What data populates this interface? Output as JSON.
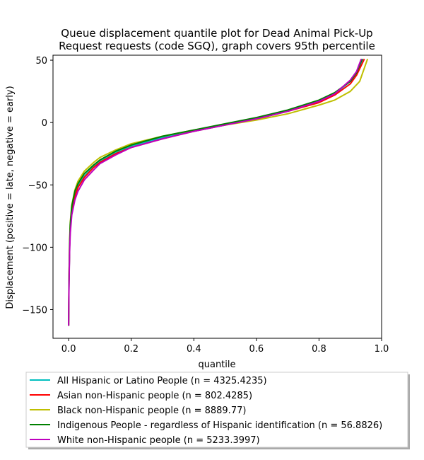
{
  "chart_data": {
    "type": "line",
    "title_line1": "Queue displacement quantile plot for Dead Animal Pick-Up",
    "title_line2": "Request  requests (code SGQ), graph covers 95th percentile",
    "xlabel": "quantile",
    "ylabel": "Displacement (positive = late, negative = early)",
    "xlim": [
      -0.05,
      1.0
    ],
    "ylim": [
      -173,
      54
    ],
    "x_ticks": [
      0.0,
      0.2,
      0.4,
      0.6,
      0.8,
      1.0
    ],
    "x_tick_labels": [
      "0.0",
      "0.2",
      "0.4",
      "0.6",
      "0.8",
      "1.0"
    ],
    "y_ticks": [
      -150,
      -100,
      -50,
      0,
      50
    ],
    "y_tick_labels": [
      "−150",
      "−100",
      "−50",
      "0",
      "50"
    ],
    "grid": false,
    "legend_position": "below",
    "series": [
      {
        "name": "All Hispanic or Latino People (n = 4325.4235)",
        "color": "#00bfbf",
        "x": [
          0.0,
          0.001,
          0.003,
          0.005,
          0.01,
          0.02,
          0.03,
          0.05,
          0.08,
          0.1,
          0.15,
          0.2,
          0.3,
          0.4,
          0.5,
          0.6,
          0.7,
          0.8,
          0.85,
          0.9,
          0.92,
          0.94
        ],
        "y": [
          -163,
          -130,
          -100,
          -85,
          -70,
          -58,
          -51,
          -43,
          -35,
          -31,
          -24,
          -19,
          -12,
          -7,
          -2,
          3,
          9,
          17,
          23,
          33,
          40,
          51
        ]
      },
      {
        "name": "Asian non-Hispanic people (n = 802.4285)",
        "color": "#ff0000",
        "x": [
          0.0,
          0.001,
          0.003,
          0.005,
          0.01,
          0.02,
          0.03,
          0.05,
          0.08,
          0.1,
          0.15,
          0.2,
          0.3,
          0.4,
          0.5,
          0.6,
          0.7,
          0.8,
          0.85,
          0.9,
          0.92,
          0.945
        ],
        "y": [
          -163,
          -128,
          -100,
          -85,
          -71,
          -59,
          -52,
          -44,
          -36,
          -32,
          -25,
          -20,
          -13,
          -7,
          -2,
          3,
          9,
          16,
          22,
          31,
          38,
          51
        ]
      },
      {
        "name": "Black non-Hispanic people (n = 8889.77)",
        "color": "#bfbf00",
        "x": [
          0.0,
          0.001,
          0.003,
          0.005,
          0.01,
          0.02,
          0.03,
          0.05,
          0.08,
          0.1,
          0.15,
          0.2,
          0.3,
          0.4,
          0.5,
          0.6,
          0.7,
          0.8,
          0.85,
          0.9,
          0.93,
          0.955
        ],
        "y": [
          -163,
          -125,
          -95,
          -80,
          -66,
          -54,
          -47,
          -39,
          -32,
          -28,
          -22,
          -17,
          -11,
          -6,
          -2,
          2,
          7,
          14,
          18,
          25,
          33,
          51
        ]
      },
      {
        "name": "Indigenous People - regardless of Hispanic identification (n = 56.8826)",
        "color": "#008000",
        "x": [
          0.0,
          0.001,
          0.003,
          0.005,
          0.01,
          0.02,
          0.03,
          0.05,
          0.08,
          0.1,
          0.15,
          0.2,
          0.3,
          0.4,
          0.5,
          0.6,
          0.7,
          0.8,
          0.85,
          0.9,
          0.92,
          0.938
        ],
        "y": [
          -163,
          -128,
          -98,
          -82,
          -67,
          -55,
          -49,
          -41,
          -34,
          -30,
          -23,
          -18,
          -11,
          -6,
          -1,
          4,
          10,
          18,
          24,
          33,
          40,
          51
        ]
      },
      {
        "name": "White non-Hispanic people (n = 5233.3997)",
        "color": "#bf00bf",
        "x": [
          0.0,
          0.001,
          0.003,
          0.005,
          0.01,
          0.02,
          0.03,
          0.05,
          0.08,
          0.1,
          0.15,
          0.2,
          0.3,
          0.4,
          0.5,
          0.6,
          0.7,
          0.8,
          0.85,
          0.9,
          0.92,
          0.935
        ],
        "y": [
          -163,
          -132,
          -104,
          -89,
          -74,
          -62,
          -55,
          -46,
          -38,
          -33,
          -26,
          -20,
          -13,
          -7,
          -2,
          3,
          9,
          17,
          23,
          34,
          41,
          51
        ]
      }
    ]
  }
}
